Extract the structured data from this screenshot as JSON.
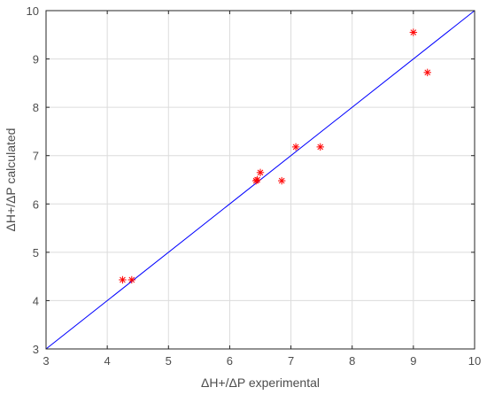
{
  "chart_data": {
    "type": "scatter",
    "title": "",
    "xlabel": "ΔH+/ΔP experimental",
    "ylabel": "ΔH+/ΔP calculated",
    "xlim": [
      3,
      10
    ],
    "ylim": [
      3,
      10
    ],
    "xticks": [
      "3",
      "4",
      "5",
      "6",
      "7",
      "8",
      "9",
      "10"
    ],
    "yticks": [
      "3",
      "4",
      "5",
      "6",
      "7",
      "8",
      "9",
      "10"
    ],
    "grid": true,
    "marker": "asterisk",
    "marker_color": "#ff0000",
    "line_color": "#0000ff",
    "reference_line": {
      "x": [
        3,
        10
      ],
      "y": [
        3,
        10
      ]
    },
    "points": [
      {
        "x": 4.25,
        "y": 4.43
      },
      {
        "x": 4.4,
        "y": 4.43
      },
      {
        "x": 6.43,
        "y": 6.48
      },
      {
        "x": 6.45,
        "y": 6.5
      },
      {
        "x": 6.5,
        "y": 6.65
      },
      {
        "x": 6.85,
        "y": 6.48
      },
      {
        "x": 7.08,
        "y": 7.18
      },
      {
        "x": 7.48,
        "y": 7.18
      },
      {
        "x": 9.0,
        "y": 9.55
      },
      {
        "x": 9.23,
        "y": 8.72
      }
    ]
  }
}
